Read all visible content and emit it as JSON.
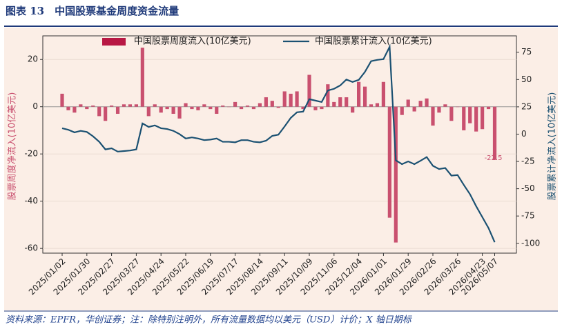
{
  "chart_data": {
    "type": "combo",
    "title": "图表 13　中国股票基金周度资金流量",
    "source": "资料来源：EPFR，华创证券；注：除特别注明外，所有流量数据均以美元（USD）计价；X 轴日期标",
    "ylabel": "股票周度净流入(10亿美元)",
    "y2label": "股票累计净流入(10亿美元)",
    "categories": [
      "2025/01/02",
      null,
      null,
      null,
      "2025/01/30",
      null,
      null,
      null,
      "2025/02/27",
      null,
      null,
      null,
      "2025/03/27",
      null,
      null,
      null,
      "2025/04/24",
      null,
      null,
      null,
      "2025/05/22",
      null,
      null,
      null,
      "2025/06/19",
      null,
      null,
      null,
      "2025/07/17",
      null,
      null,
      null,
      "2025/08/14",
      null,
      null,
      null,
      "2025/09/11",
      null,
      null,
      null,
      "2025/10/09",
      null,
      null,
      null,
      "2025/11/06",
      null,
      null,
      null,
      "2025/12/04",
      null,
      null,
      null,
      "2026/01/01",
      null,
      null,
      null,
      "2026/01/29",
      null,
      null,
      null,
      "2026/02/26",
      null,
      null,
      null,
      "2026/03/26",
      null,
      null,
      null,
      "2026/04/23",
      null,
      "2026/05/07"
    ],
    "series": [
      {
        "name": "中国股票周度流入(10亿美元)",
        "type": "bar",
        "axis": "y",
        "color": "#c9506f",
        "values": [
          5.5,
          -1.5,
          -2.5,
          1,
          -1,
          0.5,
          -4,
          -6,
          0.5,
          -3,
          1,
          1,
          1,
          25,
          -4,
          1,
          -2.5,
          -1,
          -3,
          -5,
          1.5,
          -1,
          -1.5,
          1,
          -1,
          -3,
          0.5,
          0,
          2,
          -1,
          0.5,
          -1,
          1.5,
          4,
          2.5,
          -0.5,
          6.5,
          5.5,
          6.5,
          -1,
          13.5,
          -1.5,
          -1,
          9.5,
          2,
          4,
          4,
          -2.5,
          10.5,
          8.5,
          1,
          1.5,
          10.5,
          -47,
          -57.5,
          -3.5,
          3,
          -2,
          2.5,
          3.5,
          -8,
          -2.5,
          1,
          -6,
          0,
          -10,
          -7,
          -10.5,
          -9.5,
          -1,
          -22.5
        ],
        "value_labels": [
          null,
          null,
          null,
          null,
          null,
          null,
          null,
          null,
          null,
          null,
          null,
          null,
          null,
          null,
          null,
          null,
          null,
          null,
          null,
          null,
          null,
          null,
          null,
          null,
          null,
          null,
          null,
          null,
          null,
          null,
          null,
          null,
          null,
          null,
          null,
          null,
          null,
          null,
          null,
          null,
          null,
          null,
          null,
          null,
          null,
          null,
          null,
          null,
          null,
          null,
          null,
          null,
          null,
          null,
          null,
          null,
          null,
          null,
          null,
          null,
          null,
          null,
          null,
          null,
          null,
          null,
          null,
          null,
          null,
          null,
          "-22.5"
        ]
      },
      {
        "name": "中国股票累计流入(10亿美元)",
        "type": "line",
        "axis": "y2",
        "color": "#1b5172",
        "values": [
          5.4,
          4,
          1.6,
          3,
          2,
          -2,
          -7,
          -14,
          -13,
          -16,
          -15.5,
          -15,
          -14,
          9.8,
          6.6,
          8,
          5.4,
          4.7,
          3,
          0,
          -4,
          -3,
          -4,
          -5.5,
          -5,
          -4,
          -7,
          -7,
          -7.5,
          -5.5,
          -5.5,
          -7,
          -7.5,
          -6,
          -1.6,
          -0.5,
          7,
          14.9,
          20,
          20.6,
          32,
          30.7,
          29.4,
          40,
          41.5,
          44.6,
          50,
          47.8,
          49.7,
          57,
          66.8,
          68,
          68.7,
          80,
          -24,
          -27.5,
          -25,
          -27.5,
          -24.4,
          -21,
          -29,
          -32,
          -31,
          -38,
          -37.5,
          -46.5,
          -55,
          -66,
          -76,
          -86,
          -99
        ]
      }
    ],
    "ylim": [
      -62,
      30
    ],
    "yticks": [
      -60,
      -40,
      -20,
      0,
      20
    ],
    "y2lim": [
      -109,
      90
    ],
    "y2ticks": [
      -100,
      -75,
      -50,
      -25,
      0,
      25,
      50,
      75
    ],
    "grid": true
  }
}
